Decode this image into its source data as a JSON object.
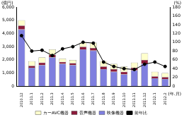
{
  "chart_data": {
    "type": "bar",
    "stacked": true,
    "grid": false,
    "legend": "bottom",
    "y_label": "(億円)",
    "y2_label": "(%)",
    "x_label": "(年.月)",
    "categories": [
      "2010.12",
      "2011.1",
      "2011.2",
      "2011.3",
      "2011.4",
      "2011.5",
      "2011.6",
      "2011.7",
      "2011.8",
      "2011.9",
      "2011.10",
      "2011.11",
      "2011.12",
      "2012.1",
      "2012.2"
    ],
    "series": [
      {
        "name": "映像機器",
        "type": "bar",
        "color": "#7f7fdf",
        "values": [
          4300,
          1400,
          1600,
          2200,
          1700,
          1600,
          2800,
          2700,
          1300,
          1100,
          900,
          1200,
          1700,
          600,
          550
        ]
      },
      {
        "name": "音声機器",
        "type": "bar",
        "color": "#8b1a3a",
        "values": [
          300,
          150,
          200,
          200,
          150,
          150,
          200,
          200,
          200,
          200,
          200,
          200,
          300,
          150,
          150
        ]
      },
      {
        "name": "カーAVC機器",
        "type": "bar",
        "color": "#ffffcc",
        "values": [
          400,
          350,
          400,
          400,
          250,
          250,
          300,
          400,
          400,
          400,
          400,
          400,
          500,
          350,
          300
        ]
      },
      {
        "name": "前年比",
        "type": "line",
        "axis": "y2",
        "color": "#000000",
        "marker": "circle",
        "values": [
          115,
          80,
          82,
          70,
          85,
          90,
          100,
          98,
          55,
          45,
          40,
          38,
          50,
          55,
          45
        ]
      }
    ],
    "ylim": [
      0,
      6000
    ],
    "yticks": [
      0,
      {
        "value": 1000,
        "label": "1,000"
      },
      {
        "value": 2000,
        "label": "2,000"
      },
      {
        "value": 3000,
        "label": "3,000"
      },
      {
        "value": 4000,
        "label": "4,000"
      },
      {
        "value": 5000,
        "label": "5,000"
      },
      {
        "value": 6000,
        "label": "6,000"
      }
    ],
    "y2lim": [
      0,
      180
    ],
    "y2ticks": [
      0,
      20,
      40,
      60,
      80,
      100,
      120,
      140,
      160,
      180
    ]
  }
}
